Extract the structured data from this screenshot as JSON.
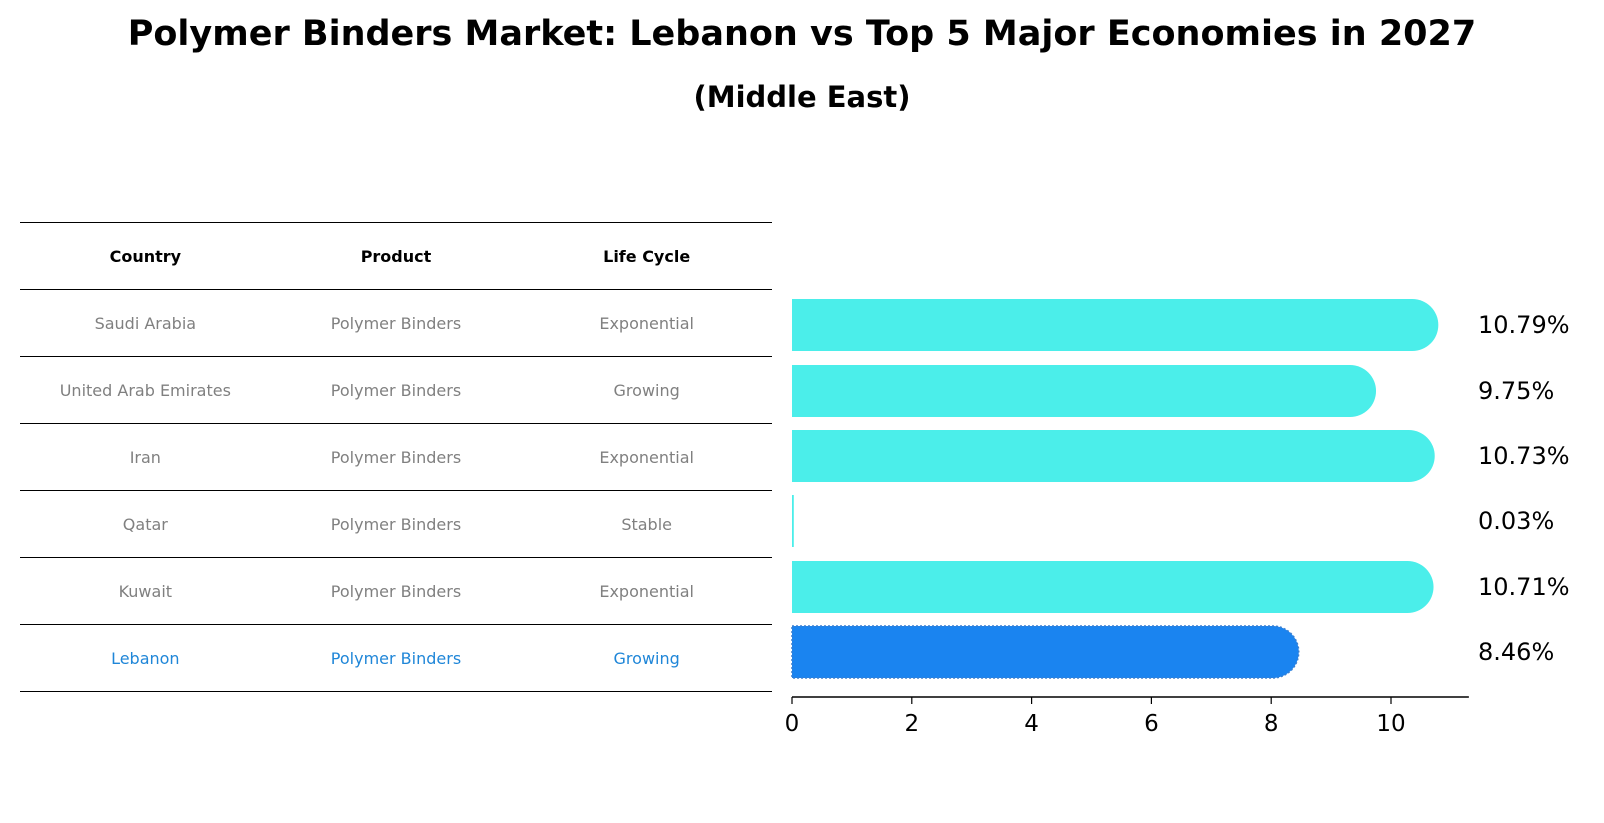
{
  "title": "Polymer Binders Market: Lebanon vs Top 5 Major Economies in 2027",
  "subtitle": "(Middle East)",
  "table": {
    "headers": [
      "Country",
      "Product",
      "Life Cycle"
    ],
    "rows": [
      {
        "country": "Saudi Arabia",
        "product": "Polymer Binders",
        "life_cycle": "Exponential"
      },
      {
        "country": "United Arab Emirates",
        "product": "Polymer Binders",
        "life_cycle": "Growing"
      },
      {
        "country": "Iran",
        "product": "Polymer Binders",
        "life_cycle": "Exponential"
      },
      {
        "country": "Qatar",
        "product": "Polymer Binders",
        "life_cycle": "Stable"
      },
      {
        "country": "Kuwait",
        "product": "Polymer Binders",
        "life_cycle": "Exponential"
      },
      {
        "country": "Lebanon",
        "product": "Polymer Binders",
        "life_cycle": "Growing",
        "highlight": true
      }
    ]
  },
  "chart_data": {
    "type": "bar",
    "orientation": "horizontal",
    "categories": [
      "Saudi Arabia",
      "United Arab Emirates",
      "Iran",
      "Qatar",
      "Kuwait",
      "Lebanon"
    ],
    "values": [
      10.79,
      9.75,
      10.73,
      0.03,
      10.71,
      8.46
    ],
    "data_labels": [
      "10.79%",
      "9.75%",
      "10.73%",
      "0.03%",
      "10.71%",
      "8.46%"
    ],
    "highlight_index": 5,
    "xlim": [
      0,
      11.3
    ],
    "xticks": [
      0,
      2,
      4,
      6,
      8,
      10
    ],
    "grid": false,
    "colors": {
      "default": "#4beeea",
      "highlight": "#1a84f0"
    }
  }
}
